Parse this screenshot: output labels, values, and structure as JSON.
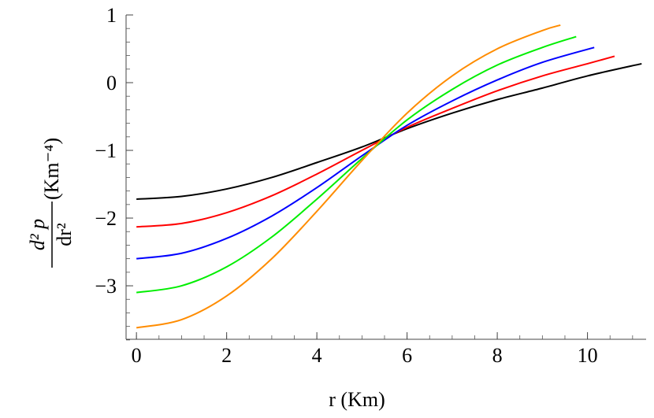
{
  "chart_data": {
    "type": "line",
    "title": "",
    "xlabel": "r (Km)",
    "ylabel": {
      "numerator": "d² p",
      "denominator": "dr²",
      "unit": "(Km⁻⁴)"
    },
    "xlim": [
      -0.23,
      11.3
    ],
    "ylim": [
      -3.79,
      1.0
    ],
    "xticks": [
      0,
      2,
      4,
      6,
      8,
      10
    ],
    "yticks": [
      1,
      0,
      -1,
      -2,
      -3
    ],
    "xtick_labels": [
      "0",
      "2",
      "4",
      "6",
      "8",
      "10"
    ],
    "ytick_labels": [
      "1",
      "0",
      "−1",
      "−2",
      "−3"
    ],
    "grid": false,
    "legend": null,
    "series": [
      {
        "name": "black",
        "color": "#000000",
        "points": [
          [
            0,
            -1.72
          ],
          [
            1,
            -1.68
          ],
          [
            2,
            -1.57
          ],
          [
            3,
            -1.4
          ],
          [
            4,
            -1.18
          ],
          [
            5,
            -0.95
          ],
          [
            6,
            -0.68
          ],
          [
            7,
            -0.45
          ],
          [
            8,
            -0.25
          ],
          [
            9,
            -0.08
          ],
          [
            10,
            0.1
          ],
          [
            11.2,
            0.28
          ]
        ]
      },
      {
        "name": "red",
        "color": "#ff0000",
        "points": [
          [
            0,
            -2.13
          ],
          [
            1,
            -2.08
          ],
          [
            2,
            -1.92
          ],
          [
            3,
            -1.67
          ],
          [
            4,
            -1.35
          ],
          [
            5,
            -1.0
          ],
          [
            6,
            -0.66
          ],
          [
            7,
            -0.38
          ],
          [
            8,
            -0.12
          ],
          [
            9,
            0.1
          ],
          [
            10,
            0.28
          ],
          [
            10.6,
            0.39
          ]
        ]
      },
      {
        "name": "blue",
        "color": "#0000ff",
        "points": [
          [
            0,
            -2.6
          ],
          [
            1,
            -2.52
          ],
          [
            2,
            -2.3
          ],
          [
            3,
            -1.97
          ],
          [
            4,
            -1.55
          ],
          [
            5,
            -1.08
          ],
          [
            6,
            -0.63
          ],
          [
            7,
            -0.27
          ],
          [
            8,
            0.04
          ],
          [
            9,
            0.3
          ],
          [
            10.15,
            0.52
          ]
        ]
      },
      {
        "name": "green",
        "color": "#00ee00",
        "points": [
          [
            0,
            -3.1
          ],
          [
            1,
            -3.0
          ],
          [
            2,
            -2.72
          ],
          [
            3,
            -2.28
          ],
          [
            4,
            -1.72
          ],
          [
            5,
            -1.12
          ],
          [
            6,
            -0.55
          ],
          [
            7,
            -0.1
          ],
          [
            8,
            0.26
          ],
          [
            9,
            0.52
          ],
          [
            9.75,
            0.68
          ]
        ]
      },
      {
        "name": "orange",
        "color": "#ff8c00",
        "points": [
          [
            0,
            -3.62
          ],
          [
            1,
            -3.5
          ],
          [
            2,
            -3.15
          ],
          [
            3,
            -2.6
          ],
          [
            4,
            -1.9
          ],
          [
            5,
            -1.15
          ],
          [
            6,
            -0.45
          ],
          [
            7,
            0.1
          ],
          [
            8,
            0.5
          ],
          [
            9,
            0.77
          ],
          [
            9.4,
            0.85
          ]
        ]
      }
    ]
  }
}
